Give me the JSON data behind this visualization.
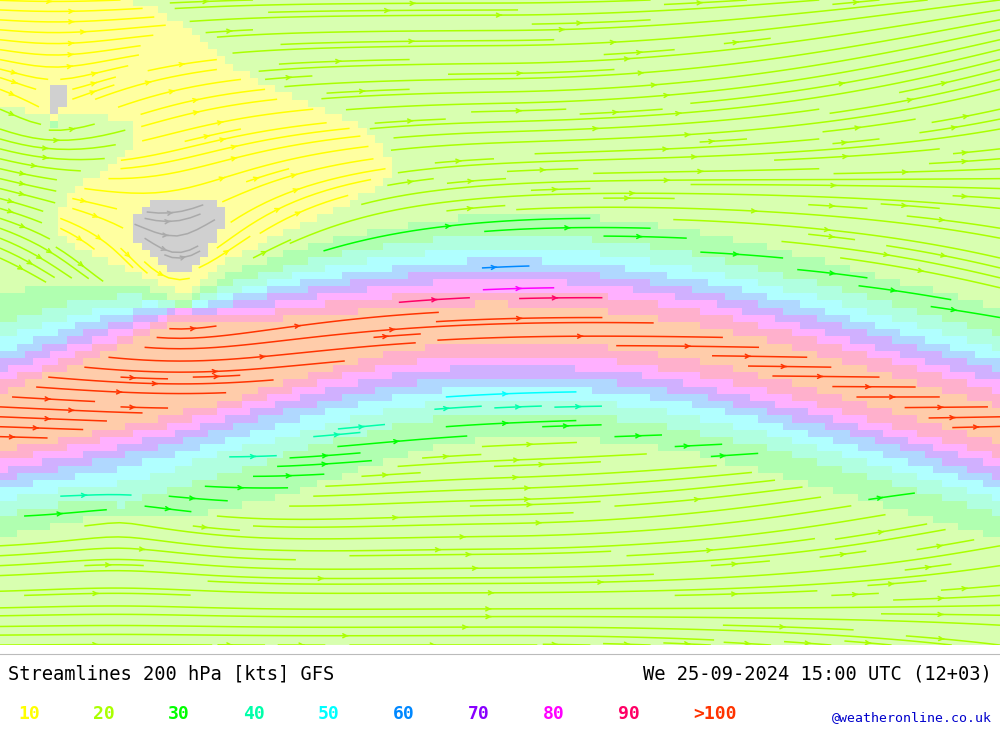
{
  "title_left": "Streamlines 200 hPa [kts] GFS",
  "title_right": "We 25-09-2024 15:00 UTC (12+03)",
  "watermark": "@weatheronline.co.uk",
  "speed_labels": [
    "10",
    "20",
    "30",
    "40",
    "50",
    "60",
    "70",
    "80",
    "90",
    ">100"
  ],
  "speed_colors": [
    "#ffff00",
    "#aaff00",
    "#00ff00",
    "#00ffaa",
    "#00ffff",
    "#0088ff",
    "#8800ff",
    "#ff00ff",
    "#ff0066",
    "#ff3300"
  ],
  "bg_low_speed": "#d8d8d8",
  "fig_width": 10.0,
  "fig_height": 7.33,
  "dpi": 100
}
